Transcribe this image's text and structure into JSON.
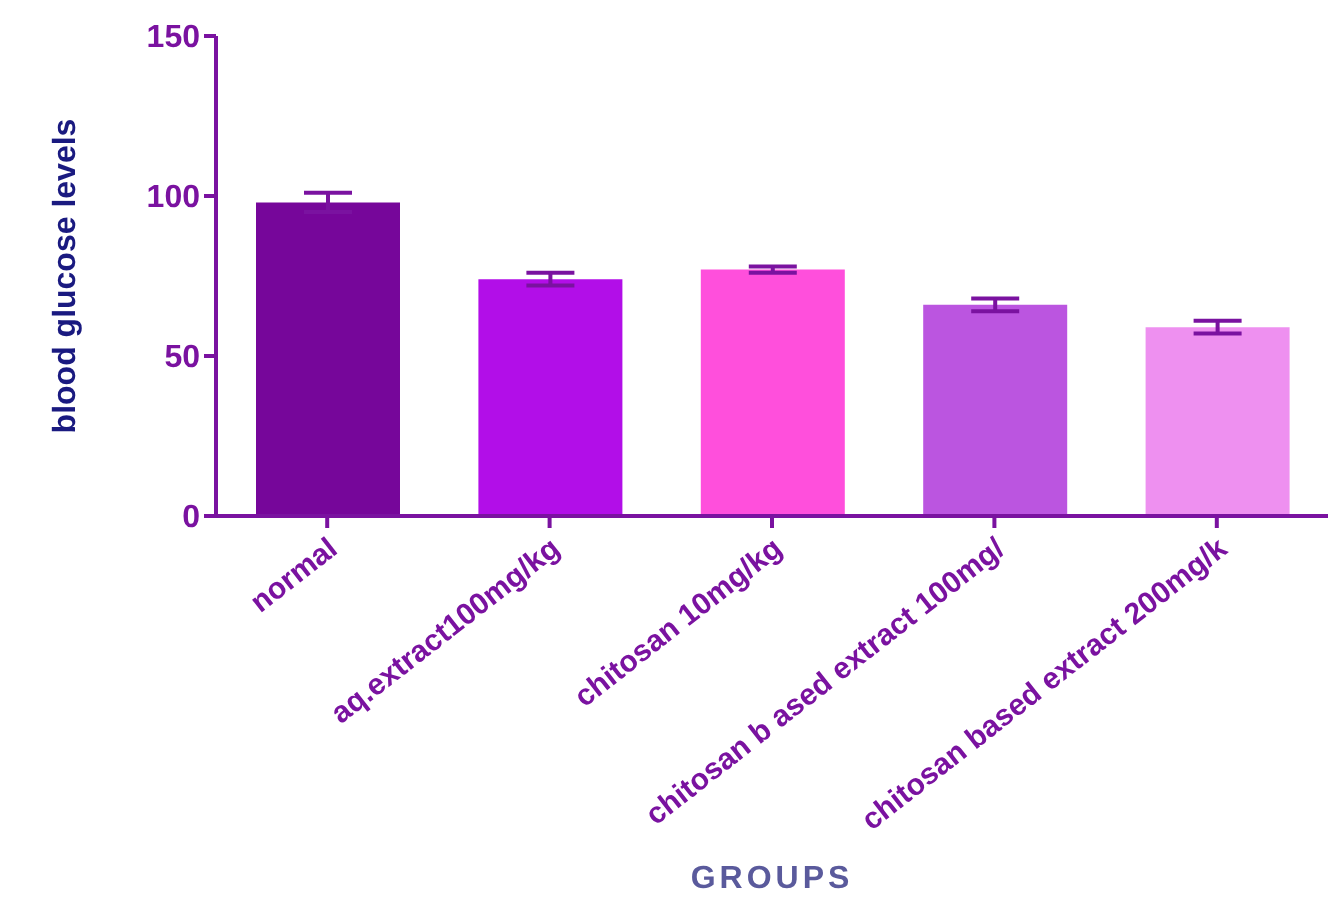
{
  "chart_data": {
    "type": "bar",
    "ylabel": "blood glucose levels",
    "xlabel": "GROUPS",
    "categories": [
      "normal",
      "aq.extract100mg/kg",
      "chitosan 10mg/kg",
      "chitosan b ased extract 100mg/",
      "chitosan based extract 200mg/k"
    ],
    "values": [
      98,
      74,
      77,
      66,
      59
    ],
    "errors": [
      3,
      2,
      1,
      2,
      2
    ],
    "colors": [
      "#76069a",
      "#b20ee8",
      "#ff4fdc",
      "#bb55e0",
      "#ee90f0"
    ],
    "ylim": [
      0,
      150
    ],
    "yticks": [
      0,
      50,
      100,
      150
    ],
    "grid": false,
    "legend": false
  }
}
